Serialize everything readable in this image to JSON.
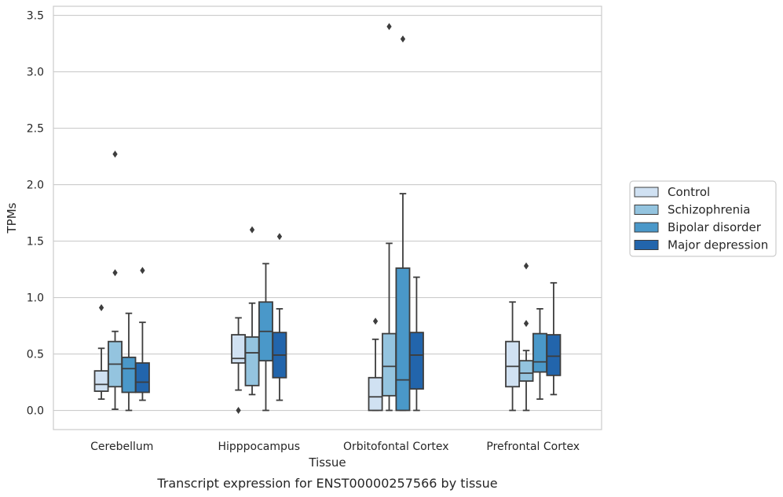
{
  "chart_data": {
    "type": "box",
    "caption": "Transcript expression for ENST00000257566 by tissue",
    "xlabel": "Tissue",
    "ylabel": "TPMs",
    "ylim": [
      -0.17,
      3.58
    ],
    "yticks": [
      0.0,
      0.5,
      1.0,
      1.5,
      2.0,
      2.5,
      3.0,
      3.5
    ],
    "ytick_labels": [
      "0.0",
      "0.5",
      "1.0",
      "1.5",
      "2.0",
      "2.5",
      "3.0",
      "3.5"
    ],
    "categories": [
      "Cerebellum",
      "Hipppocampus",
      "Orbitofontal Cortex",
      "Prefrontal Cortex"
    ],
    "grid": "horizontal",
    "legend_position": "right",
    "series": [
      {
        "name": "Control",
        "color": "#d0e1f2",
        "boxes": [
          {
            "whislo": 0.1,
            "q1": 0.17,
            "med": 0.23,
            "q3": 0.35,
            "whishi": 0.55,
            "fliers": [
              0.91
            ]
          },
          {
            "whislo": 0.18,
            "q1": 0.42,
            "med": 0.46,
            "q3": 0.67,
            "whishi": 0.82,
            "fliers": [
              0.0
            ]
          },
          {
            "whislo": 0.0,
            "q1": 0.0,
            "med": 0.12,
            "q3": 0.29,
            "whishi": 0.63,
            "fliers": [
              0.79
            ]
          },
          {
            "whislo": 0.0,
            "q1": 0.21,
            "med": 0.39,
            "q3": 0.61,
            "whishi": 0.96,
            "fliers": []
          }
        ]
      },
      {
        "name": "Schizophrenia",
        "color": "#94c4df",
        "boxes": [
          {
            "whislo": 0.01,
            "q1": 0.21,
            "med": 0.41,
            "q3": 0.61,
            "whishi": 0.7,
            "fliers": [
              2.27,
              1.22
            ]
          },
          {
            "whislo": 0.14,
            "q1": 0.22,
            "med": 0.51,
            "q3": 0.65,
            "whishi": 0.95,
            "fliers": [
              1.6
            ]
          },
          {
            "whislo": 0.0,
            "q1": 0.13,
            "med": 0.39,
            "q3": 0.68,
            "whishi": 1.48,
            "fliers": [
              3.4
            ]
          },
          {
            "whislo": 0.0,
            "q1": 0.26,
            "med": 0.33,
            "q3": 0.44,
            "whishi": 0.53,
            "fliers": [
              1.28,
              0.77
            ]
          }
        ]
      },
      {
        "name": "Bipolar disorder",
        "color": "#4a98c9",
        "boxes": [
          {
            "whislo": 0.0,
            "q1": 0.16,
            "med": 0.37,
            "q3": 0.47,
            "whishi": 0.86,
            "fliers": []
          },
          {
            "whislo": 0.0,
            "q1": 0.44,
            "med": 0.7,
            "q3": 0.96,
            "whishi": 1.3,
            "fliers": []
          },
          {
            "whislo": 0.0,
            "q1": 0.0,
            "med": 0.27,
            "q3": 1.26,
            "whishi": 1.92,
            "fliers": [
              3.29
            ]
          },
          {
            "whislo": 0.1,
            "q1": 0.34,
            "med": 0.43,
            "q3": 0.68,
            "whishi": 0.9,
            "fliers": []
          }
        ]
      },
      {
        "name": "Major depression",
        "color": "#2265ac",
        "boxes": [
          {
            "whislo": 0.09,
            "q1": 0.16,
            "med": 0.25,
            "q3": 0.42,
            "whishi": 0.78,
            "fliers": [
              1.24
            ]
          },
          {
            "whislo": 0.09,
            "q1": 0.29,
            "med": 0.49,
            "q3": 0.69,
            "whishi": 0.9,
            "fliers": [
              1.54
            ]
          },
          {
            "whislo": 0.0,
            "q1": 0.19,
            "med": 0.49,
            "q3": 0.69,
            "whishi": 1.18,
            "fliers": []
          },
          {
            "whislo": 0.14,
            "q1": 0.31,
            "med": 0.48,
            "q3": 0.67,
            "whishi": 1.13,
            "fliers": []
          }
        ]
      }
    ]
  }
}
